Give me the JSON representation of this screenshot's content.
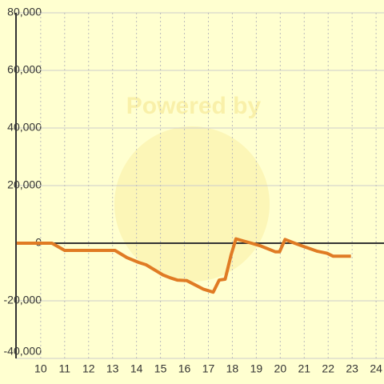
{
  "chart_data": {
    "type": "line",
    "watermark": "Powered by",
    "x": [
      9,
      10.47,
      11.0,
      13.1,
      13.6,
      14.1,
      14.4,
      14.8,
      15.1,
      15.4,
      15.7,
      16.1,
      16.45,
      16.8,
      17.2,
      17.45,
      17.7,
      17.95,
      18.15,
      18.45,
      18.8,
      19.2,
      19.8,
      19.97,
      20.2,
      20.6,
      21.1,
      21.55,
      21.95,
      22.2,
      22.95
    ],
    "series": [
      {
        "color": "#e07b24",
        "values": [
          0,
          0,
          -2500,
          -2500,
          -5000,
          -6700,
          -7500,
          -9500,
          -11000,
          -12000,
          -12800,
          -13000,
          -14500,
          -16000,
          -17000,
          -12800,
          -12500,
          -4000,
          1500,
          800,
          0,
          -1000,
          -3000,
          -3000,
          1300,
          0,
          -1500,
          -2800,
          -3500,
          -4500,
          -4500
        ]
      }
    ],
    "xlim": [
      8.97,
      24.33
    ],
    "xticks": [
      10,
      11,
      12,
      13,
      14,
      15,
      16,
      17,
      18,
      19,
      20,
      21,
      22,
      23,
      24
    ],
    "ylim": [
      -40000,
      80000
    ],
    "yticks": [
      {
        "value": -40000,
        "label": "-40,000"
      },
      {
        "value": -20000,
        "label": "-20,000"
      },
      0,
      {
        "value": 20000,
        "label": "20,000"
      },
      {
        "value": 40000,
        "label": "40,000"
      },
      {
        "value": 60000,
        "label": "60,000"
      },
      {
        "value": 80000,
        "label": "80,000"
      }
    ],
    "grid": true
  }
}
